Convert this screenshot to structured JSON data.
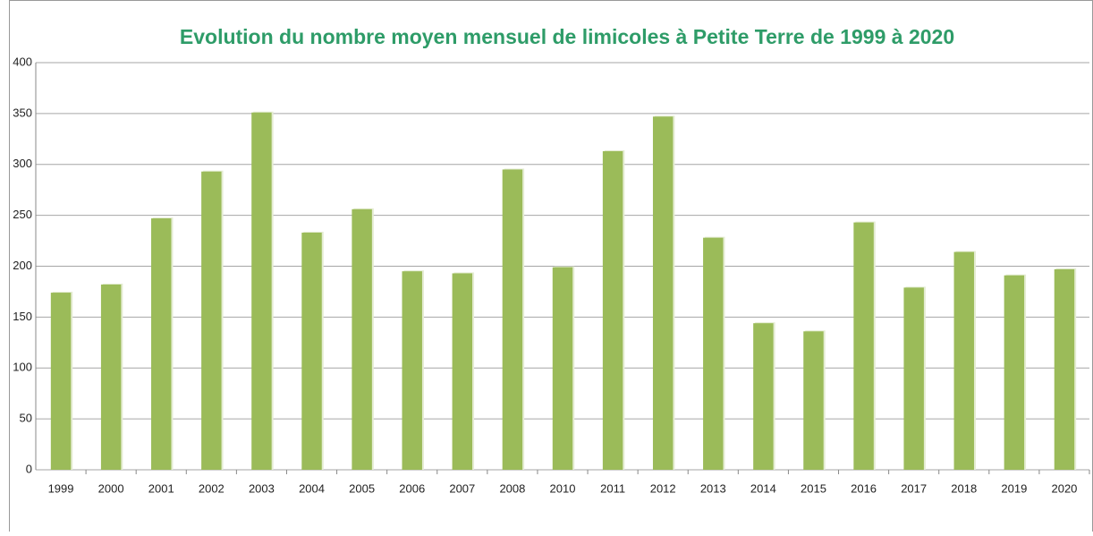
{
  "chart_data": {
    "type": "bar",
    "title": "Evolution du nombre moyen mensuel de limicoles à Petite Terre de 1999 à 2020",
    "categories": [
      "1999",
      "2000",
      "2001",
      "2002",
      "2003",
      "2004",
      "2005",
      "2006",
      "2007",
      "2008",
      "2010",
      "2011",
      "2012",
      "2013",
      "2014",
      "2015",
      "2016",
      "2017",
      "2018",
      "2019",
      "2020"
    ],
    "values": [
      174,
      182,
      247,
      293,
      351,
      233,
      256,
      195,
      193,
      295,
      199,
      313,
      347,
      228,
      144,
      136,
      243,
      179,
      214,
      191,
      197
    ],
    "color": "#9bbb59",
    "ylim": [
      0,
      400
    ],
    "yticks": [
      0,
      50,
      100,
      150,
      200,
      250,
      300,
      350,
      400
    ],
    "grid": true
  }
}
